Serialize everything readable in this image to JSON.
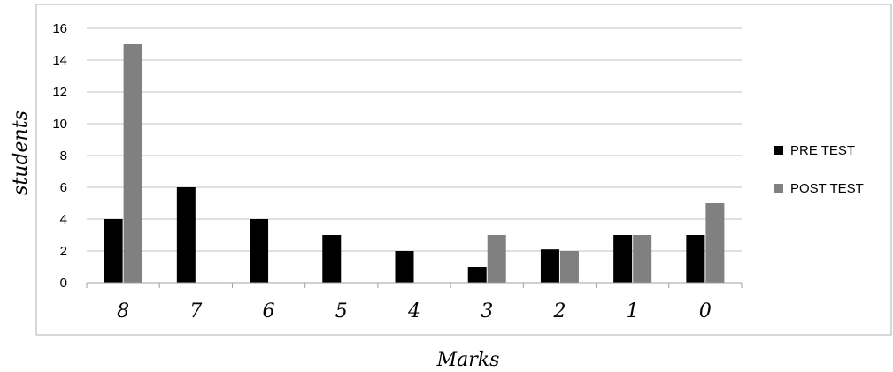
{
  "chart_data": {
    "type": "bar",
    "title": "",
    "xlabel": "Marks",
    "ylabel": "students",
    "categories": [
      "8",
      "7",
      "6",
      "5",
      "4",
      "3",
      "2",
      "1",
      "0"
    ],
    "series": [
      {
        "name": "PRE TEST",
        "color": "#000000",
        "values": [
          4,
          6,
          4,
          3,
          2,
          1,
          2.1,
          3,
          3
        ]
      },
      {
        "name": "POST TEST",
        "color": "#808080",
        "values": [
          15,
          0,
          0,
          0,
          0,
          3,
          2,
          3,
          5
        ]
      }
    ],
    "ylim": [
      0,
      16
    ],
    "yticks": [
      "0",
      "2",
      "4",
      "6",
      "8",
      "10",
      "12",
      "14",
      "16"
    ],
    "grid": true,
    "legend_position": "right",
    "gridline_color": "#c0c0c0",
    "axis_color": "#a0a0a0",
    "frame_color": "#b0b0b0"
  }
}
